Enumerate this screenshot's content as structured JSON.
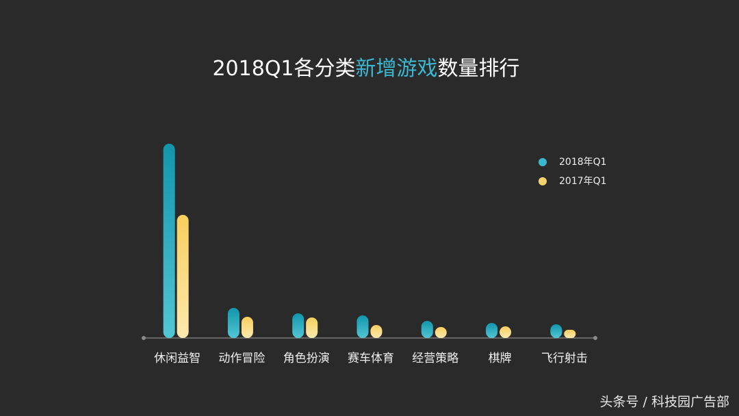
{
  "chart_data": {
    "type": "bar",
    "title": [
      {
        "text": "2018Q1各分类",
        "color": "#ffffff"
      },
      {
        "text": "新增游戏",
        "color": "#3ab7d1"
      },
      {
        "text": "数量排行",
        "color": "#ffffff"
      }
    ],
    "categories": [
      "休闲益智",
      "动作冒险",
      "角色扮演",
      "赛车体育",
      "经营策略",
      "棋牌",
      "飞行射击"
    ],
    "series": [
      {
        "name": "2018年Q1",
        "color": "#3ab7d1",
        "values": [
          284,
          44,
          36,
          33,
          25,
          22,
          20
        ]
      },
      {
        "name": "2017年Q1",
        "color": "#f6d36e",
        "values": [
          180,
          31,
          30,
          19,
          16,
          17,
          12
        ]
      }
    ],
    "ylim": [
      0,
      300
    ],
    "legend": "top-right",
    "watermark": "头条号 / 科技园广告部"
  }
}
